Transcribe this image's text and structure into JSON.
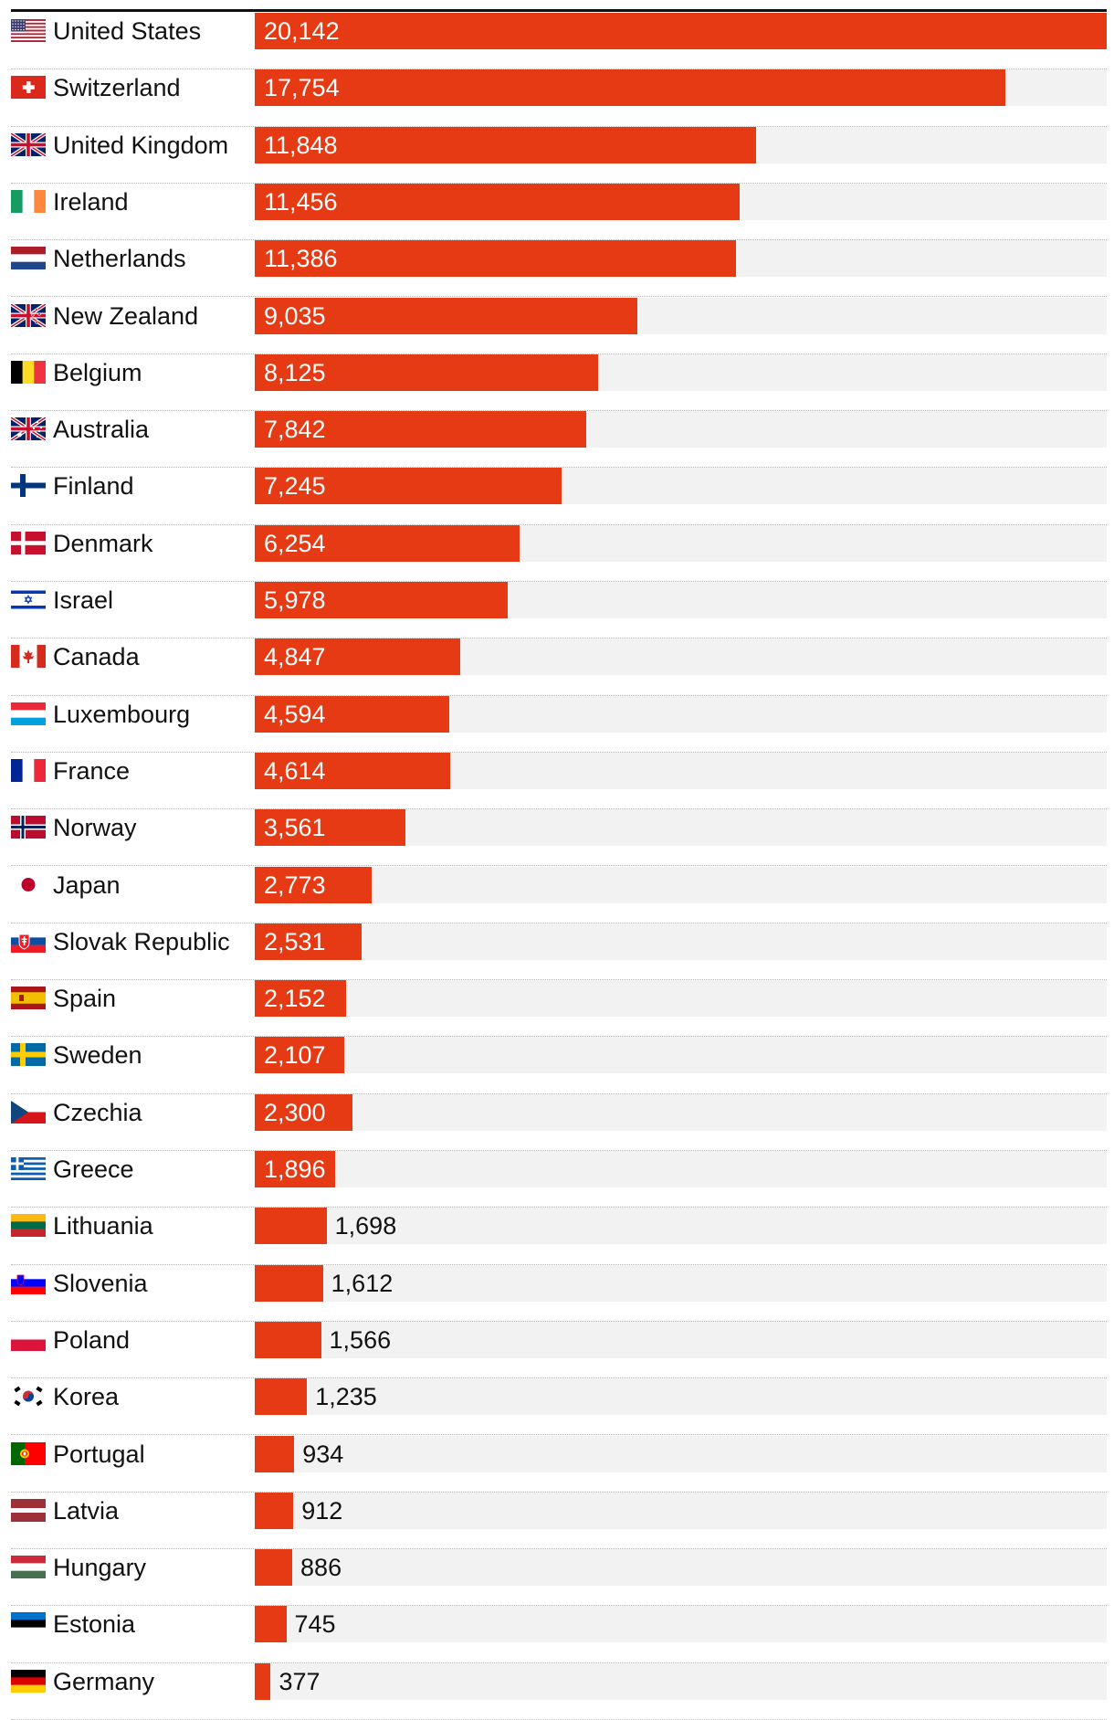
{
  "chart_data": {
    "type": "bar",
    "orientation": "horizontal",
    "xlim": [
      0,
      20142
    ],
    "grid": false,
    "categories": [
      "United States",
      "Switzerland",
      "United Kingdom",
      "Ireland",
      "Netherlands",
      "New Zealand",
      "Belgium",
      "Australia",
      "Finland",
      "Denmark",
      "Israel",
      "Canada",
      "Luxembourg",
      "France",
      "Norway",
      "Japan",
      "Slovak Republic",
      "Spain",
      "Sweden",
      "Czechia",
      "Greece",
      "Lithuania",
      "Slovenia",
      "Poland",
      "Korea",
      "Portugal",
      "Latvia",
      "Hungary",
      "Estonia",
      "Germany"
    ],
    "values": [
      20142,
      17754,
      11848,
      11456,
      11386,
      9035,
      8125,
      7842,
      7245,
      6254,
      5978,
      4847,
      4594,
      4614,
      3561,
      2773,
      2531,
      2152,
      2107,
      2300,
      1896,
      1698,
      1612,
      1566,
      1235,
      934,
      912,
      886,
      745,
      377
    ],
    "value_labels": [
      "20,142",
      "17,754",
      "11,848",
      "11,456",
      "11,386",
      "9,035",
      "8,125",
      "7,842",
      "7,245",
      "6,254",
      "5,978",
      "4,847",
      "4,594",
      "4,614",
      "3,561",
      "2,773",
      "2,531",
      "2,152",
      "2,107",
      "2,300",
      "1,896",
      "1,698",
      "1,612",
      "1,566",
      "1,235",
      "934",
      "912",
      "886",
      "745",
      "377"
    ],
    "flag_icons": [
      "us-flag-icon",
      "switzerland-flag-icon",
      "uk-flag-icon",
      "ireland-flag-icon",
      "netherlands-flag-icon",
      "new-zealand-flag-icon",
      "belgium-flag-icon",
      "australia-flag-icon",
      "finland-flag-icon",
      "denmark-flag-icon",
      "israel-flag-icon",
      "canada-flag-icon",
      "luxembourg-flag-icon",
      "france-flag-icon",
      "norway-flag-icon",
      "japan-flag-icon",
      "slovakia-flag-icon",
      "spain-flag-icon",
      "sweden-flag-icon",
      "czechia-flag-icon",
      "greece-flag-icon",
      "lithuania-flag-icon",
      "slovenia-flag-icon",
      "poland-flag-icon",
      "korea-flag-icon",
      "portugal-flag-icon",
      "latvia-flag-icon",
      "hungary-flag-icon",
      "estonia-flag-icon",
      "germany-flag-icon"
    ],
    "colors": {
      "bar": "#e53a13",
      "track": "#f2f2f2",
      "label_inside": "#ffffff",
      "label_outside": "#111111"
    }
  }
}
